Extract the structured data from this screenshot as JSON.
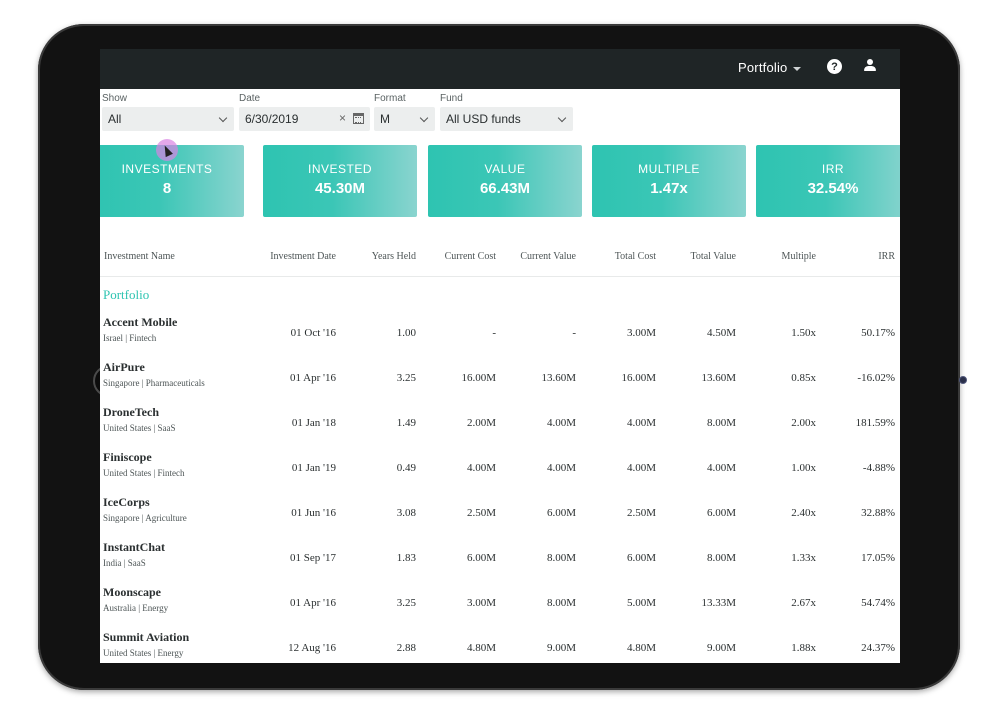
{
  "header": {
    "portfolio_menu": "Portfolio",
    "help_icon_glyph": "?"
  },
  "filters": {
    "show": {
      "label": "Show",
      "value": "All"
    },
    "date": {
      "label": "Date",
      "value": "6/30/2019",
      "clear": "×"
    },
    "format": {
      "label": "Format",
      "value": "M"
    },
    "fund": {
      "label": "Fund",
      "value": "All USD funds"
    }
  },
  "kpis": [
    {
      "label": "INVESTMENTS",
      "value": "8"
    },
    {
      "label": "INVESTED",
      "value": "45.30M"
    },
    {
      "label": "VALUE",
      "value": "66.43M"
    },
    {
      "label": "MULTIPLE",
      "value": "1.47x"
    },
    {
      "label": "IRR",
      "value": "32.54%"
    }
  ],
  "table": {
    "columns": [
      "Investment Name",
      "Investment Date",
      "Years Held",
      "Current Cost",
      "Current Value",
      "Total Cost",
      "Total Value",
      "Multiple",
      "IRR"
    ],
    "section": "Portfolio",
    "rows": [
      {
        "name": "Accent Mobile",
        "country": "Israel",
        "sector": "Fintech",
        "sub": "Israel |  Fintech",
        "date": "01 Oct '16",
        "years": "1.00",
        "current_cost": "-",
        "current_value": "-",
        "total_cost": "3.00M",
        "total_value": "4.50M",
        "multiple": "1.50x",
        "irr": "50.17%"
      },
      {
        "name": "AirPure",
        "country": "Singapore",
        "sector": "Pharmaceuticals",
        "sub": "Singapore |  Pharmaceuticals",
        "date": "01 Apr '16",
        "years": "3.25",
        "current_cost": "16.00M",
        "current_value": "13.60M",
        "total_cost": "16.00M",
        "total_value": "13.60M",
        "multiple": "0.85x",
        "irr": "-16.02%"
      },
      {
        "name": "DroneTech",
        "country": "United States",
        "sector": "SaaS",
        "sub": "United States |  SaaS",
        "date": "01 Jan '18",
        "years": "1.49",
        "current_cost": "2.00M",
        "current_value": "4.00M",
        "total_cost": "4.00M",
        "total_value": "8.00M",
        "multiple": "2.00x",
        "irr": "181.59%"
      },
      {
        "name": "Finiscope",
        "country": "United States",
        "sector": "Fintech",
        "sub": "United States |  Fintech",
        "date": "01 Jan '19",
        "years": "0.49",
        "current_cost": "4.00M",
        "current_value": "4.00M",
        "total_cost": "4.00M",
        "total_value": "4.00M",
        "multiple": "1.00x",
        "irr": "-4.88%"
      },
      {
        "name": "IceCorps",
        "country": "Singapore",
        "sector": "Agriculture",
        "sub": "Singapore |  Agriculture",
        "date": "01 Jun '16",
        "years": "3.08",
        "current_cost": "2.50M",
        "current_value": "6.00M",
        "total_cost": "2.50M",
        "total_value": "6.00M",
        "multiple": "2.40x",
        "irr": "32.88%"
      },
      {
        "name": "InstantChat",
        "country": "India",
        "sector": "SaaS",
        "sub": "India |  SaaS",
        "date": "01 Sep '17",
        "years": "1.83",
        "current_cost": "6.00M",
        "current_value": "8.00M",
        "total_cost": "6.00M",
        "total_value": "8.00M",
        "multiple": "1.33x",
        "irr": "17.05%"
      },
      {
        "name": "Moonscape",
        "country": "Australia",
        "sector": "Energy",
        "sub": "Australia |  Energy",
        "date": "01 Apr '16",
        "years": "3.25",
        "current_cost": "3.00M",
        "current_value": "8.00M",
        "total_cost": "5.00M",
        "total_value": "13.33M",
        "multiple": "2.67x",
        "irr": "54.74%"
      },
      {
        "name": "Summit Aviation",
        "country": "United States",
        "sector": "Energy",
        "sub": "United States |  Energy",
        "date": "12 Aug '16",
        "years": "2.88",
        "current_cost": "4.80M",
        "current_value": "9.00M",
        "total_cost": "4.80M",
        "total_value": "9.00M",
        "multiple": "1.88x",
        "irr": "24.37%"
      }
    ]
  },
  "colors": {
    "accent": "#2ec4b1",
    "topbar": "#1f2526",
    "frame": "#121212"
  }
}
